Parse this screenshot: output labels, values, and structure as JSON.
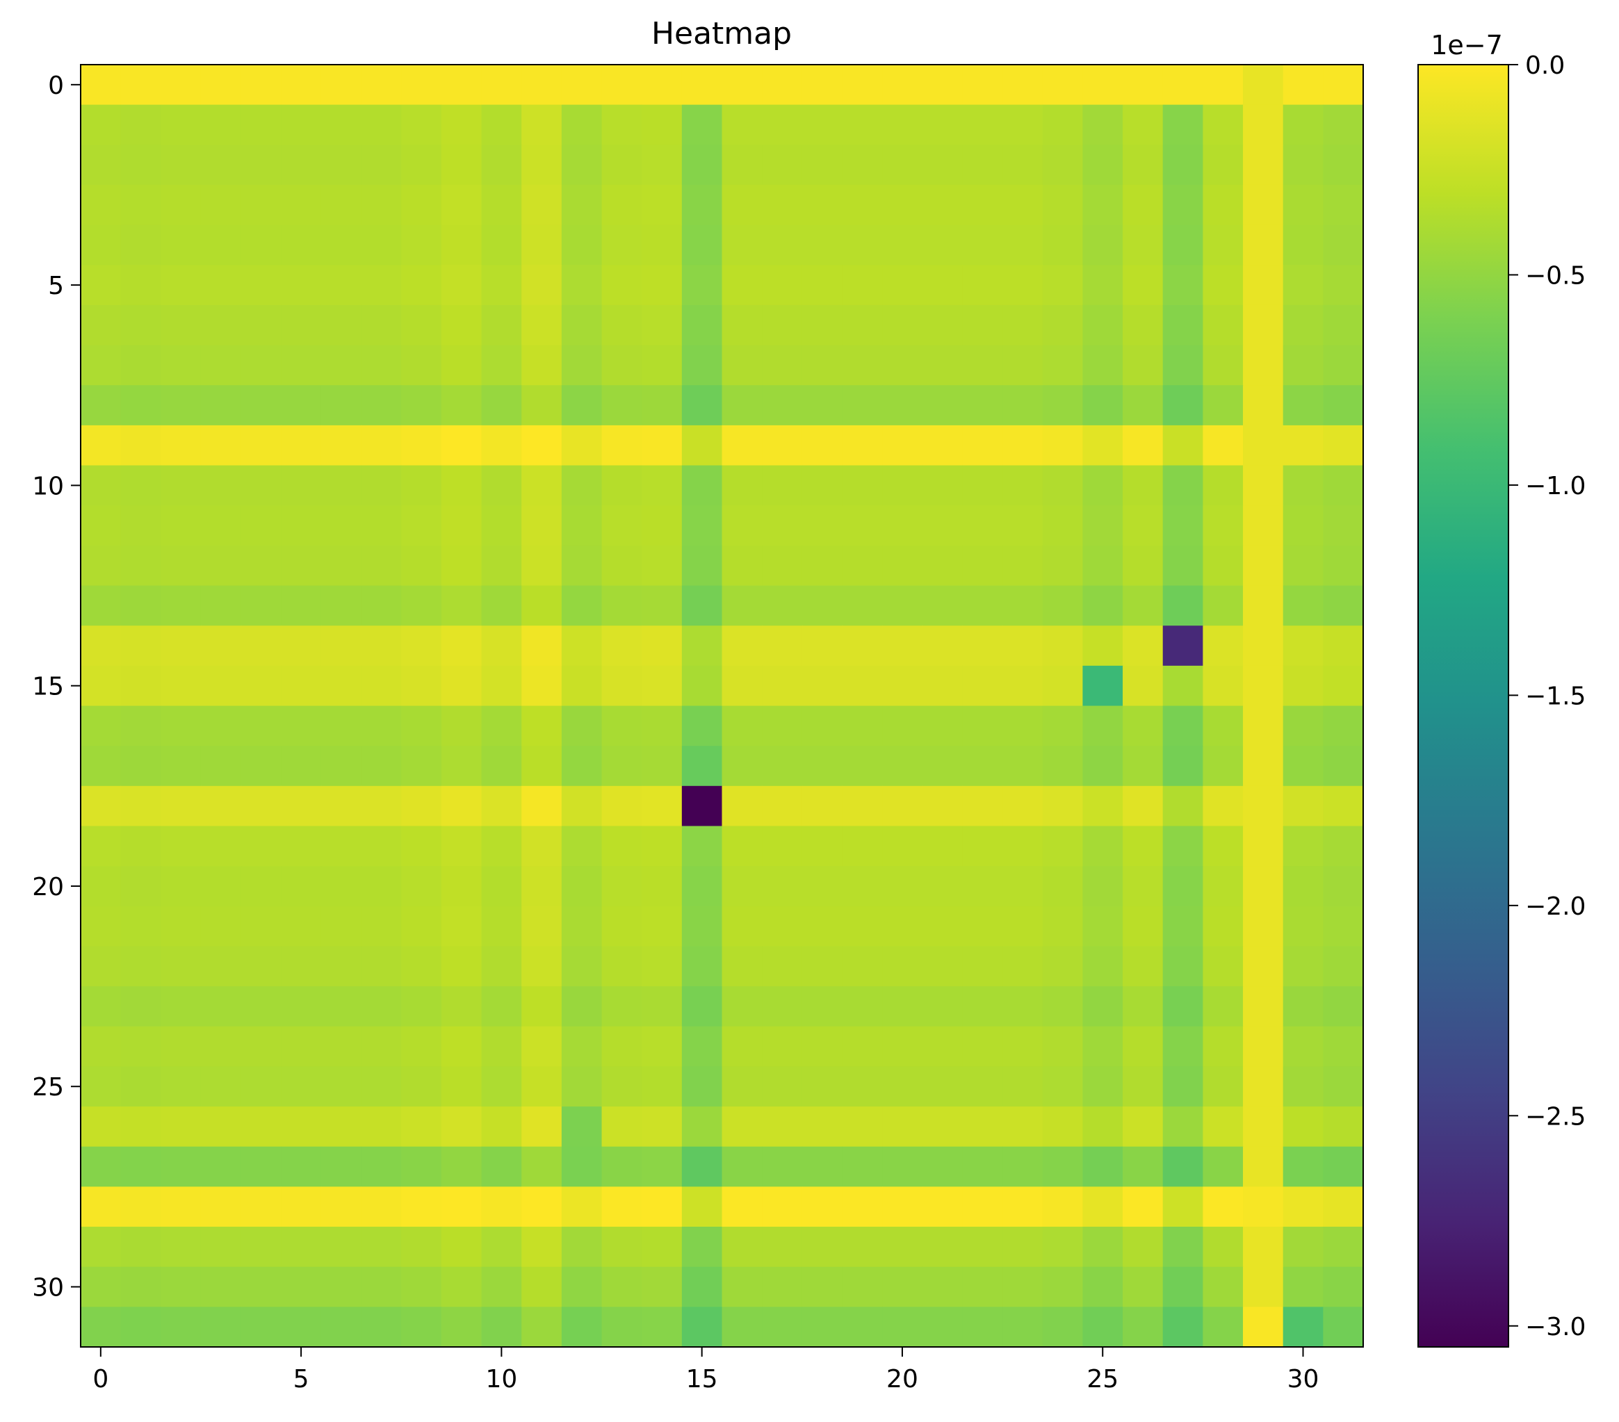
{
  "chart_data": {
    "type": "heatmap",
    "title": "Heatmap",
    "xlabel": "",
    "ylabel": "",
    "rows": 32,
    "cols": 32,
    "x_ticks": [
      0,
      5,
      10,
      15,
      20,
      25,
      30
    ],
    "y_ticks": [
      0,
      5,
      10,
      15,
      20,
      25,
      30
    ],
    "x_tick_labels": [
      "0",
      "5",
      "10",
      "15",
      "20",
      "25",
      "30"
    ],
    "y_tick_labels": [
      "0",
      "5",
      "10",
      "15",
      "20",
      "25",
      "30"
    ],
    "colormap": "viridis",
    "colorbar": {
      "min": -3.05,
      "max": 0.0,
      "exponent_label": "1e−7",
      "ticks": [
        0.0,
        -0.5,
        -1.0,
        -1.5,
        -2.0,
        -2.5,
        -3.0
      ],
      "tick_labels": [
        "0.0",
        "−0.5",
        "−1.0",
        "−1.5",
        "−2.0",
        "−2.5",
        "−3.0"
      ]
    },
    "row_offsets": [
      0.0,
      -0.35,
      -0.36,
      -0.34,
      -0.35,
      -0.33,
      -0.36,
      -0.38,
      -0.48,
      -0.05,
      -0.36,
      -0.35,
      -0.36,
      -0.44,
      -0.18,
      -0.2,
      -0.42,
      -0.44,
      -0.16,
      -0.33,
      -0.35,
      -0.34,
      -0.36,
      -0.42,
      -0.36,
      -0.38,
      -0.26,
      -0.56,
      -0.03,
      -0.38,
      -0.46,
      -0.58
    ],
    "col_offsets": [
      0.0,
      -0.01,
      0.0,
      0.0,
      0.0,
      0.0,
      0.0,
      0.0,
      0.02,
      0.06,
      0.0,
      0.12,
      -0.05,
      0.02,
      0.03,
      -0.2,
      0.02,
      0.02,
      0.02,
      0.02,
      0.02,
      0.02,
      0.02,
      0.02,
      0.0,
      -0.08,
      0.02,
      -0.2,
      0.02,
      0.22,
      -0.05,
      -0.08
    ],
    "fixed_row_values": {
      "0": -0.02
    },
    "fixed_col_values": {
      "29": -0.1
    },
    "overrides": [
      {
        "row": 14,
        "col": 27,
        "value": -2.7
      },
      {
        "row": 15,
        "col": 25,
        "value": -1.0
      },
      {
        "row": 17,
        "col": 15,
        "value": -0.72
      },
      {
        "row": 18,
        "col": 15,
        "value": -3.05
      },
      {
        "row": 26,
        "col": 12,
        "value": -0.6
      },
      {
        "row": 13,
        "col": 27,
        "value": -0.68
      },
      {
        "row": 28,
        "col": 29,
        "value": -0.03
      },
      {
        "row": 31,
        "col": 29,
        "value": -0.02
      },
      {
        "row": 31,
        "col": 30,
        "value": -0.85
      }
    ]
  }
}
